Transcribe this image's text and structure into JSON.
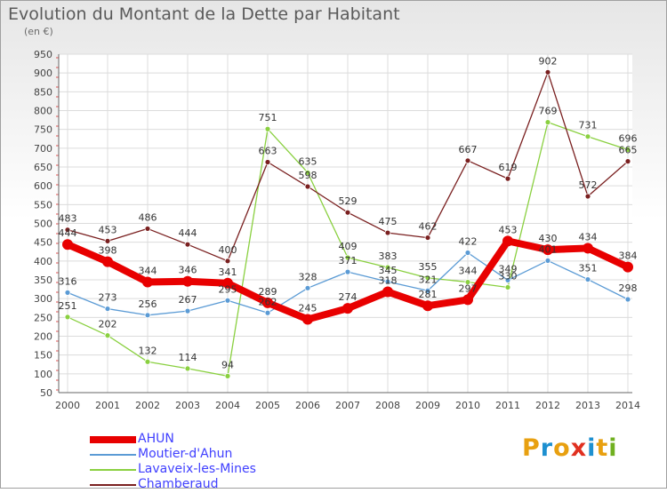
{
  "title": "Evolution du Montant de la Dette par Habitant",
  "unit": "(en €)",
  "logo": {
    "text": "Proxiti",
    "colors": [
      "#e8a010",
      "#1e90d0",
      "#e8a010",
      "#e03020",
      "#1e90d0",
      "#e8a010",
      "#70b020"
    ]
  },
  "chart_data": {
    "type": "line",
    "x": [
      "2000",
      "2001",
      "2002",
      "2003",
      "2004",
      "2005",
      "2006",
      "2007",
      "2008",
      "2009",
      "2010",
      "2011",
      "2012",
      "2013",
      "2014"
    ],
    "ylim": [
      50,
      950
    ],
    "yticks": [
      50,
      100,
      150,
      200,
      250,
      300,
      350,
      400,
      450,
      500,
      550,
      600,
      650,
      700,
      750,
      800,
      850,
      900,
      950
    ],
    "grid": true,
    "legend_position": "bottom-left",
    "series": [
      {
        "name": "AHUN",
        "color": "#e80000",
        "values": [
          444,
          398,
          344,
          346,
          341,
          289,
          245,
          274,
          318,
          281,
          297,
          453,
          430,
          434,
          384
        ],
        "labels": [
          "444",
          "398",
          "344",
          "346",
          "341",
          "289",
          "245",
          "274",
          "318",
          "281",
          "297",
          "453",
          "430",
          "434",
          "384"
        ]
      },
      {
        "name": "Moutier-d'Ahun",
        "color": "#5b9bd5",
        "values": [
          316,
          273,
          256,
          267,
          295,
          262,
          328,
          371,
          345,
          321,
          422,
          349,
          401,
          351,
          298
        ],
        "labels": [
          "316",
          "273",
          "256",
          "267",
          "295",
          "262",
          "328",
          "371",
          "345",
          "321",
          "422",
          "349",
          "401",
          "351",
          "298"
        ]
      },
      {
        "name": "Lavaveix-les-Mines",
        "color": "#8ad040",
        "values": [
          251,
          202,
          132,
          114,
          94,
          751,
          635,
          409,
          383,
          355,
          344,
          330,
          769,
          731,
          696
        ],
        "labels": [
          "251",
          "202",
          "132",
          "114",
          "94",
          "751",
          "635",
          "409",
          "383",
          "355",
          "344",
          "330",
          "769",
          "731",
          "696"
        ]
      },
      {
        "name": "Chamberaud",
        "color": "#7a2020",
        "values": [
          483,
          453,
          486,
          444,
          400,
          663,
          598,
          529,
          475,
          462,
          667,
          619,
          902,
          572,
          665
        ],
        "labels": [
          "483",
          "453",
          "486",
          "444",
          "400",
          "663",
          "598",
          "529",
          "475",
          "462",
          "667",
          "619",
          "902",
          "572",
          "665"
        ]
      }
    ]
  }
}
